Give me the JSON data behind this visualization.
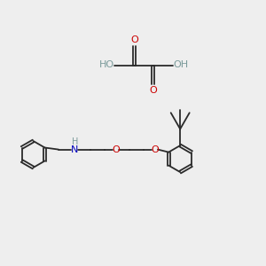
{
  "bg_color": "#eeeeee",
  "line_color": "#2a2a2a",
  "oxygen_color": "#cc0000",
  "nitrogen_color": "#0000bb",
  "hydrogen_color": "#7a9a9a",
  "fig_w": 3.0,
  "fig_h": 3.0,
  "dpi": 100,
  "xlim": [
    0,
    10
  ],
  "ylim": [
    0,
    10
  ]
}
